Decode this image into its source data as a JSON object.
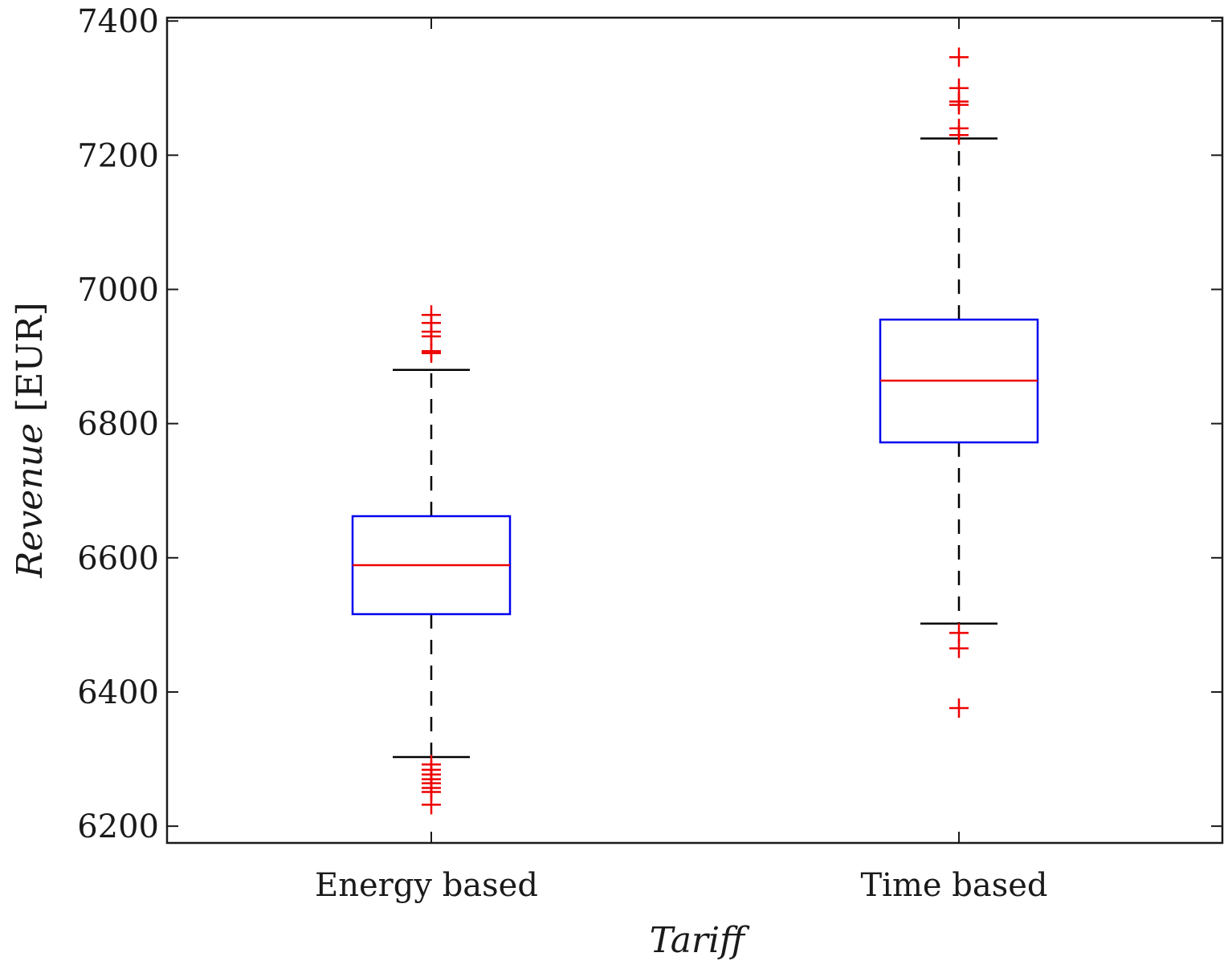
{
  "chart_data": {
    "type": "boxplot",
    "title": "",
    "xlabel": "Tariff",
    "ylabel": {
      "italic": "Revenue",
      "unit": " [EUR]"
    },
    "ylim": [
      6175,
      7405
    ],
    "yticks": [
      6200,
      6400,
      6600,
      6800,
      7000,
      7200,
      7400
    ],
    "ytick_labels": [
      "6200",
      "6400",
      "6600",
      "6800",
      "7000",
      "7200",
      "7400"
    ],
    "categories": [
      "Energy based",
      "Time based"
    ],
    "boxes": [
      {
        "name": "Energy based",
        "whisker_low": 6303,
        "q1": 6516,
        "median": 6589,
        "q3": 6662,
        "whisker_high": 6880,
        "outliers_high": [
          6905,
          6908,
          6930,
          6937,
          6950,
          6962
        ],
        "outliers_low": [
          6292,
          6284,
          6277,
          6270,
          6264,
          6257,
          6251,
          6232
        ]
      },
      {
        "name": "Time based",
        "whisker_low": 6502,
        "q1": 6772,
        "median": 6864,
        "q3": 6955,
        "whisker_high": 7225,
        "outliers_high": [
          7230,
          7240,
          7275,
          7280,
          7300,
          7346
        ],
        "outliers_low": [
          6488,
          6465,
          6376
        ]
      }
    ],
    "colors": {
      "box": "#0000ee",
      "median": "#ee0000",
      "outlier": "#ee0000",
      "whisker": "#000000",
      "axes": "#1a1a1a"
    }
  }
}
